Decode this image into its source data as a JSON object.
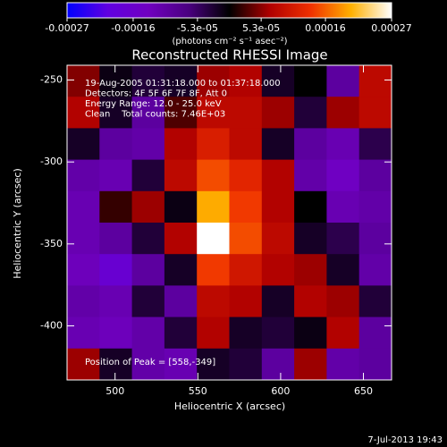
{
  "chart_data": {
    "type": "heatmap",
    "title": "Reconstructed RHESSI Image",
    "xlabel": "Heliocentric X (arcsec)",
    "ylabel": "Heliocentric Y (arcsec)",
    "xlim": [
      471,
      667
    ],
    "ylim": [
      -433,
      -241
    ],
    "xticks": [
      500,
      550,
      600,
      650
    ],
    "yticks": [
      -250,
      -300,
      -350,
      -400
    ],
    "z": [
      [
        5e-05,
        -1e-05,
        -3e-05,
        -2e-05,
        6e-05,
        7e-05,
        -2e-05,
        0,
        -0.0001,
        8e-05
      ],
      [
        7e-05,
        -2e-05,
        -0.0001,
        3e-05,
        8e-05,
        8e-05,
        6e-05,
        -3e-05,
        6e-05,
        8e-05
      ],
      [
        -2e-05,
        -0.0001,
        -0.00011,
        7e-05,
        0.00011,
        8e-05,
        -2e-05,
        -0.0001,
        -0.00012,
        -4e-05
      ],
      [
        -0.00011,
        -0.00012,
        -3e-05,
        8e-05,
        0.00015,
        0.00012,
        7e-05,
        -0.00011,
        -0.00014,
        -0.0001
      ],
      [
        -0.00012,
        2e-05,
        6e-05,
        -1e-05,
        0.0002,
        0.00014,
        7e-05,
        0,
        -0.00012,
        -0.00011
      ],
      [
        -0.00012,
        -0.0001,
        -3e-05,
        7e-05,
        0.00027,
        0.00015,
        8e-05,
        -2e-05,
        -4e-05,
        -0.0001
      ],
      [
        -0.00013,
        -0.00017,
        -0.0001,
        -2e-05,
        0.00014,
        0.0001,
        7e-05,
        6e-05,
        -2e-05,
        -0.00011
      ],
      [
        -0.00011,
        -0.00012,
        -3e-05,
        -0.0001,
        8e-05,
        7e-05,
        -2e-05,
        7e-05,
        6e-05,
        -3e-05
      ],
      [
        -0.00012,
        -0.00013,
        -0.00011,
        -3e-05,
        7e-05,
        -2e-05,
        -3e-05,
        -1e-05,
        7e-05,
        -0.0001
      ],
      [
        6e-05,
        -2e-05,
        -0.00011,
        -0.00012,
        -2e-05,
        -3e-05,
        -0.0001,
        6e-05,
        -0.00011,
        -0.0001
      ]
    ],
    "colormap": [
      "#0000ff",
      "#6000e0",
      "#7000c0",
      "#4a0080",
      "#000000",
      "#b00000",
      "#f03000",
      "#ffb000",
      "#ffffff"
    ],
    "colorbar": {
      "lim": [
        -0.00027,
        0.00027
      ],
      "ticks": [
        -0.00027,
        -0.00016,
        {
          "value": -5.3e-05,
          "label": "-5.3e-05"
        },
        {
          "value": 5.3e-05,
          "label": "5.3e-05"
        },
        0.00016,
        0.00027
      ],
      "label": "(photons cm⁻² s⁻¹ asec⁻²)"
    },
    "annotations": [
      "19-Aug-2005 01:31:18.000 to 01:37:18.000",
      "Detectors: 4F 5F 6F 7F 8F, Att 0",
      "Energy Range: 12.0 - 25.0 keV",
      "Clean    Total counts: 7.46E+03"
    ],
    "peak_label": "Position of Peak = [558,-349]",
    "timestamp": "7-Jul-2013 19:43"
  }
}
